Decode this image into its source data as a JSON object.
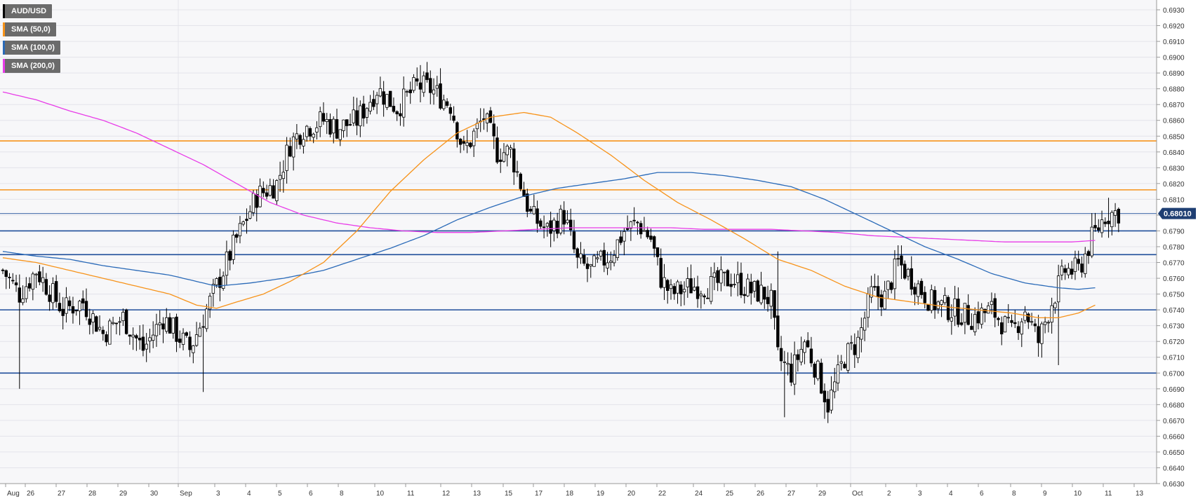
{
  "symbol": "AUD/USD",
  "colors": {
    "background": "#ffffff",
    "plot_bg": "#f7f7f9",
    "grid": "#e4e4ea",
    "candle_up": "#ffffff",
    "candle_down": "#000000",
    "sma50": "#f7931a",
    "sma100": "#2a6ab8",
    "sma200": "#e83ce8",
    "resistance": "#f7931a",
    "support": "#1f4e9a",
    "last_price_line": "#1f4e9a",
    "price_tag_bg": "#1f3f73"
  },
  "legend": [
    {
      "label": "AUD/USD",
      "color": "#000000"
    },
    {
      "label": "SMA (50,0)",
      "color": "#f7931a"
    },
    {
      "label": "SMA (100,0)",
      "color": "#2a6ab8"
    },
    {
      "label": "SMA (200,0)",
      "color": "#e83ce8"
    }
  ],
  "chart_data": {
    "type": "candlestick",
    "y_range": [
      0.663,
      0.6935
    ],
    "y_ticks": [
      "0.6930",
      "0.6920",
      "0.6910",
      "0.6900",
      "0.6890",
      "0.6880",
      "0.6870",
      "0.6860",
      "0.6850",
      "0.6840",
      "0.6830",
      "0.6820",
      "0.6810",
      "0.6800",
      "0.6790",
      "0.6780",
      "0.6770",
      "0.6760",
      "0.6750",
      "0.6740",
      "0.6730",
      "0.6720",
      "0.6710",
      "0.6700",
      "0.6690",
      "0.6680",
      "0.6670",
      "0.6660",
      "0.6650",
      "0.6640",
      "0.6630"
    ],
    "x_ticks": [
      "Aug",
      "26",
      "27",
      "28",
      "29",
      "30",
      "Sep",
      "3",
      "4",
      "5",
      "6",
      "8",
      "10",
      "11",
      "12",
      "13",
      "15",
      "17",
      "18",
      "19",
      "20",
      "22",
      "24",
      "25",
      "26",
      "27",
      "29",
      "Oct",
      "2",
      "3",
      "4",
      "6",
      "8",
      "9",
      "10",
      "11",
      "13"
    ],
    "last_price": 0.6801,
    "last_price_label": "0.68010",
    "horizontal_levels": [
      {
        "type": "resistance",
        "value": 0.6847
      },
      {
        "type": "resistance",
        "value": 0.6816
      },
      {
        "type": "support",
        "value": 0.679
      },
      {
        "type": "support",
        "value": 0.6775
      },
      {
        "type": "support",
        "value": 0.674
      },
      {
        "type": "support",
        "value": 0.67
      }
    ],
    "anchors": [
      [
        0,
        0.6765
      ],
      [
        5,
        0.675
      ],
      [
        10,
        0.6765
      ],
      [
        18,
        0.674
      ],
      [
        24,
        0.6745
      ],
      [
        30,
        0.6725
      ],
      [
        36,
        0.6735
      ],
      [
        42,
        0.6715
      ],
      [
        48,
        0.6735
      ],
      [
        56,
        0.6715
      ],
      [
        60,
        0.6735
      ],
      [
        64,
        0.6755
      ],
      [
        70,
        0.6785
      ],
      [
        76,
        0.6812
      ],
      [
        82,
        0.682
      ],
      [
        86,
        0.6845
      ],
      [
        90,
        0.6855
      ],
      [
        96,
        0.686
      ],
      [
        100,
        0.6855
      ],
      [
        106,
        0.686
      ],
      [
        112,
        0.688
      ],
      [
        118,
        0.6868
      ],
      [
        124,
        0.6882
      ],
      [
        128,
        0.688
      ],
      [
        134,
        0.687
      ],
      [
        138,
        0.684
      ],
      [
        144,
        0.6862
      ],
      [
        148,
        0.684
      ],
      [
        152,
        0.684
      ],
      [
        158,
        0.68
      ],
      [
        163,
        0.679
      ],
      [
        168,
        0.68
      ],
      [
        172,
        0.677
      ],
      [
        176,
        0.6765
      ],
      [
        182,
        0.6775
      ],
      [
        186,
        0.679
      ],
      [
        190,
        0.6795
      ],
      [
        194,
        0.6785
      ],
      [
        197,
        0.676
      ],
      [
        200,
        0.675
      ],
      [
        206,
        0.6755
      ],
      [
        212,
        0.6755
      ],
      [
        218,
        0.676
      ],
      [
        224,
        0.6752
      ],
      [
        228,
        0.675
      ],
      [
        230,
        0.6745
      ],
      [
        232,
        0.671
      ],
      [
        236,
        0.67
      ],
      [
        240,
        0.672
      ],
      [
        244,
        0.67
      ],
      [
        247,
        0.668
      ],
      [
        252,
        0.671
      ],
      [
        256,
        0.672
      ],
      [
        260,
        0.675
      ],
      [
        264,
        0.6748
      ],
      [
        268,
        0.677
      ],
      [
        272,
        0.676
      ],
      [
        278,
        0.6745
      ],
      [
        284,
        0.674
      ],
      [
        290,
        0.6735
      ],
      [
        296,
        0.674
      ],
      [
        302,
        0.6725
      ],
      [
        306,
        0.674
      ],
      [
        310,
        0.672
      ],
      [
        314,
        0.6745
      ],
      [
        318,
        0.6765
      ],
      [
        322,
        0.6765
      ],
      [
        326,
        0.6785
      ],
      [
        330,
        0.68
      ],
      [
        334,
        0.6802
      ]
    ],
    "sma50": [
      [
        0,
        0.6773
      ],
      [
        10,
        0.677
      ],
      [
        20,
        0.6765
      ],
      [
        30,
        0.676
      ],
      [
        40,
        0.6755
      ],
      [
        50,
        0.675
      ],
      [
        58,
        0.6743
      ],
      [
        64,
        0.6741
      ],
      [
        70,
        0.6745
      ],
      [
        78,
        0.675
      ],
      [
        86,
        0.6758
      ],
      [
        96,
        0.677
      ],
      [
        106,
        0.679
      ],
      [
        116,
        0.6815
      ],
      [
        126,
        0.6835
      ],
      [
        136,
        0.6852
      ],
      [
        146,
        0.6862
      ],
      [
        156,
        0.6865
      ],
      [
        164,
        0.6862
      ],
      [
        172,
        0.6852
      ],
      [
        182,
        0.6838
      ],
      [
        192,
        0.6822
      ],
      [
        202,
        0.6808
      ],
      [
        212,
        0.6797
      ],
      [
        222,
        0.6785
      ],
      [
        232,
        0.6772
      ],
      [
        242,
        0.6765
      ],
      [
        252,
        0.6755
      ],
      [
        262,
        0.6748
      ],
      [
        272,
        0.6745
      ],
      [
        282,
        0.6742
      ],
      [
        292,
        0.674
      ],
      [
        302,
        0.6738
      ],
      [
        310,
        0.6735
      ],
      [
        316,
        0.6735
      ],
      [
        322,
        0.6738
      ],
      [
        327,
        0.6743
      ]
    ],
    "sma100": [
      [
        0,
        0.6777
      ],
      [
        10,
        0.6774
      ],
      [
        20,
        0.6772
      ],
      [
        30,
        0.6768
      ],
      [
        40,
        0.6765
      ],
      [
        50,
        0.6762
      ],
      [
        58,
        0.6758
      ],
      [
        64,
        0.6755
      ],
      [
        74,
        0.6757
      ],
      [
        84,
        0.676
      ],
      [
        96,
        0.6765
      ],
      [
        106,
        0.6772
      ],
      [
        116,
        0.6779
      ],
      [
        126,
        0.6787
      ],
      [
        136,
        0.6797
      ],
      [
        146,
        0.6805
      ],
      [
        156,
        0.6812
      ],
      [
        166,
        0.6817
      ],
      [
        176,
        0.682
      ],
      [
        186,
        0.6823
      ],
      [
        196,
        0.6827
      ],
      [
        206,
        0.6827
      ],
      [
        216,
        0.6825
      ],
      [
        226,
        0.6822
      ],
      [
        236,
        0.6818
      ],
      [
        246,
        0.681
      ],
      [
        256,
        0.68
      ],
      [
        266,
        0.679
      ],
      [
        276,
        0.678
      ],
      [
        286,
        0.6772
      ],
      [
        296,
        0.6763
      ],
      [
        306,
        0.6757
      ],
      [
        316,
        0.6754
      ],
      [
        322,
        0.6753
      ],
      [
        327,
        0.6754
      ]
    ],
    "sma200": [
      [
        0,
        0.6878
      ],
      [
        10,
        0.6873
      ],
      [
        20,
        0.6866
      ],
      [
        30,
        0.686
      ],
      [
        40,
        0.6852
      ],
      [
        50,
        0.6842
      ],
      [
        60,
        0.6832
      ],
      [
        70,
        0.682
      ],
      [
        80,
        0.6808
      ],
      [
        90,
        0.68
      ],
      [
        100,
        0.6795
      ],
      [
        110,
        0.6792
      ],
      [
        120,
        0.679
      ],
      [
        130,
        0.6789
      ],
      [
        140,
        0.6789
      ],
      [
        150,
        0.679
      ],
      [
        160,
        0.6791
      ],
      [
        170,
        0.6792
      ],
      [
        180,
        0.6792
      ],
      [
        190,
        0.6792
      ],
      [
        200,
        0.6792
      ],
      [
        210,
        0.6791
      ],
      [
        220,
        0.6791
      ],
      [
        230,
        0.6791
      ],
      [
        240,
        0.679
      ],
      [
        250,
        0.6789
      ],
      [
        260,
        0.6787
      ],
      [
        270,
        0.6786
      ],
      [
        280,
        0.6785
      ],
      [
        290,
        0.6784
      ],
      [
        300,
        0.6783
      ],
      [
        310,
        0.6783
      ],
      [
        320,
        0.6783
      ],
      [
        327,
        0.6784
      ]
    ]
  }
}
